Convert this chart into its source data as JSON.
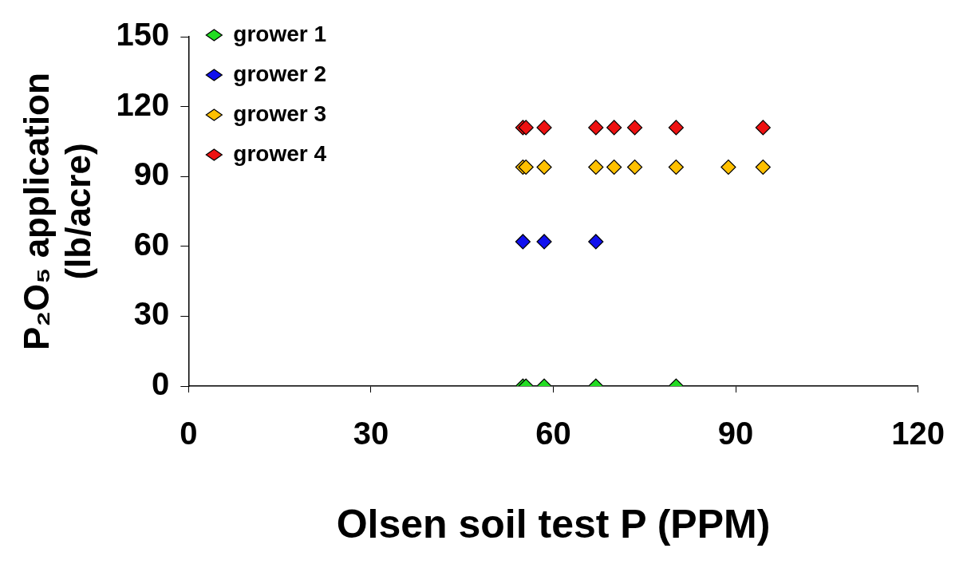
{
  "chart_data": {
    "type": "scatter",
    "xlabel": "Olsen soil test P (PPM)",
    "ylabel": "P₂O₅ application (lb/acre)",
    "xlim": [
      0,
      120
    ],
    "xticks": [
      0,
      30,
      60,
      90,
      120
    ],
    "ylim": [
      0,
      150
    ],
    "yticks": [
      0,
      30,
      60,
      90,
      120,
      150
    ],
    "marker": "diamond",
    "legend": "top left",
    "series": [
      {
        "name": "grower 1",
        "color": "#22dd22",
        "x": [
          55,
          55.5,
          58.5,
          67,
          80.2
        ],
        "values": [
          0,
          0,
          0,
          0,
          0
        ]
      },
      {
        "name": "grower 2",
        "color": "#1010ee",
        "x": [
          55,
          58.5,
          67
        ],
        "values": [
          62,
          62,
          62
        ]
      },
      {
        "name": "grower 3",
        "color": "#ffc000",
        "x": [
          55,
          55.5,
          58.5,
          67,
          70,
          73.4,
          80.2,
          88.8,
          94.5
        ],
        "values": [
          94,
          94,
          94,
          94,
          94,
          94,
          94,
          94,
          94
        ]
      },
      {
        "name": "grower 4",
        "color": "#ee1111",
        "x": [
          55,
          55.5,
          58.5,
          67,
          70,
          73.4,
          80.2,
          94.5
        ],
        "values": [
          111,
          111,
          111,
          111,
          111,
          111,
          111,
          111
        ]
      }
    ]
  }
}
